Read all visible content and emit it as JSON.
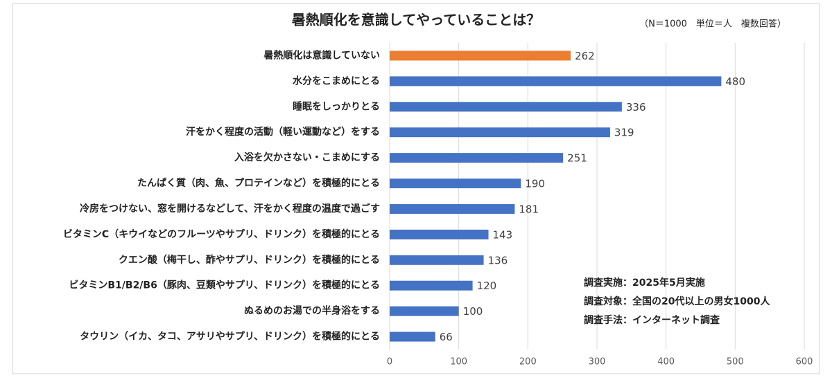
{
  "chart_data": {
    "type": "barh",
    "title": "暑熱順化を意識してやっていることは？",
    "subtitle": "（N＝1000　単位＝人　複数回答）",
    "categories": [
      "暑熱順化は意識していない",
      "水分をこまめにとる",
      "睡眠をしっかりとる",
      "汗をかく程度の活動（軽い運動など）をする",
      "入浴を欠かさない・こまめにする",
      "たんぱく質（肉、魚、プロテインなど）を積極的にとる",
      "冷房をつけない、窓を開けるなどして、汗をかく程度の温度で過ごす",
      "ビタミンC（キウイなどのフルーツやサプリ、ドリンク）を積極的にとる",
      "クエン酸（梅干し、酢やサプリ、ドリンク）を積極的にとる",
      "ビタミンB1/B2/B6（豚肉、豆類やサプリ、ドリンク）を積極的にとる",
      "ぬるめのお湯での半身浴をする",
      "タウリン（イカ、タコ、アサリやサプリ、ドリンク）を積極的にとる"
    ],
    "values": [
      262,
      480,
      336,
      319,
      251,
      190,
      181,
      143,
      136,
      120,
      100,
      66
    ],
    "colors": [
      "#ed7d31",
      "#4472c4",
      "#4472c4",
      "#4472c4",
      "#4472c4",
      "#4472c4",
      "#4472c4",
      "#4472c4",
      "#4472c4",
      "#4472c4",
      "#4472c4",
      "#4472c4"
    ],
    "xlim": [
      0,
      600
    ],
    "xticks": [
      0,
      100,
      200,
      300,
      400,
      500,
      600
    ],
    "grid": true,
    "notes": [
      "調査実施：2025年5月実施",
      "調査対象：全国の20代以上の男女1000人",
      "調査手法：インターネット調査"
    ]
  }
}
